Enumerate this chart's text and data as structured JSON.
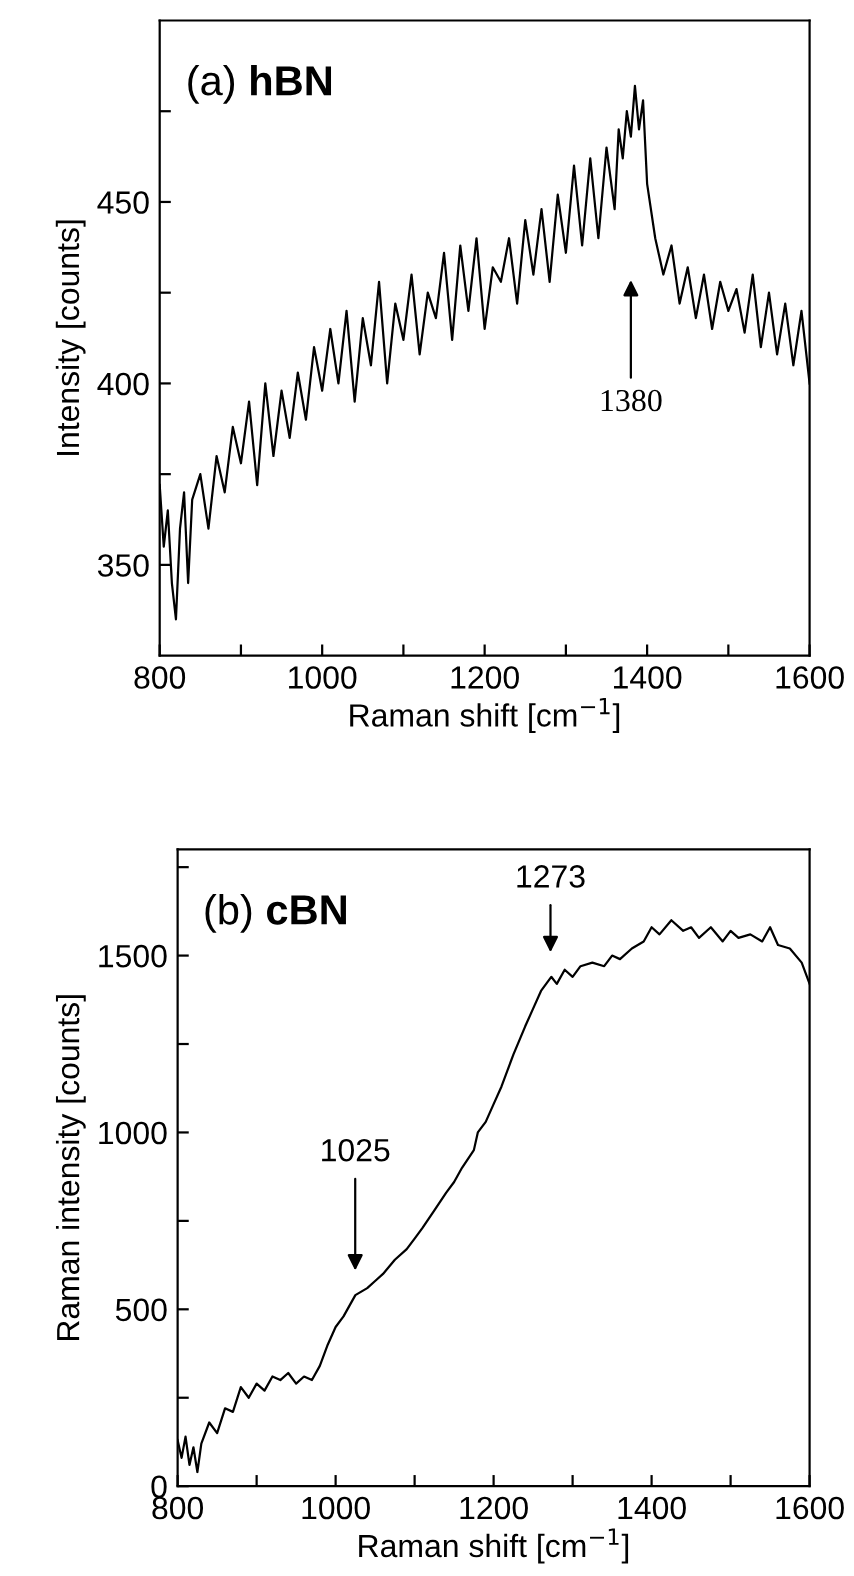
{
  "chart_data": [
    {
      "type": "line",
      "title": "(a) hBN",
      "xlabel": "Raman shift [cm$^{−1}$]",
      "ylabel": "Intensity [counts]",
      "x": [
        800,
        805,
        810,
        815,
        820,
        825,
        830,
        835,
        840,
        850,
        860,
        870,
        880,
        890,
        900,
        910,
        920,
        930,
        940,
        950,
        960,
        970,
        980,
        990,
        1000,
        1010,
        1020,
        1030,
        1040,
        1050,
        1060,
        1070,
        1080,
        1090,
        1100,
        1110,
        1120,
        1130,
        1140,
        1150,
        1160,
        1170,
        1180,
        1190,
        1200,
        1210,
        1220,
        1230,
        1240,
        1250,
        1260,
        1270,
        1280,
        1290,
        1300,
        1310,
        1320,
        1330,
        1340,
        1350,
        1360,
        1365,
        1370,
        1375,
        1380,
        1385,
        1390,
        1395,
        1400,
        1410,
        1420,
        1430,
        1440,
        1450,
        1460,
        1470,
        1480,
        1490,
        1500,
        1510,
        1520,
        1530,
        1540,
        1550,
        1560,
        1570,
        1580,
        1590,
        1600
      ],
      "series": [
        {
          "color": "#000000",
          "values": [
            372,
            355,
            365,
            345,
            335,
            360,
            370,
            345,
            368,
            375,
            360,
            380,
            370,
            388,
            378,
            395,
            372,
            400,
            380,
            398,
            385,
            403,
            390,
            410,
            398,
            415,
            400,
            420,
            395,
            418,
            405,
            428,
            400,
            422,
            412,
            430,
            408,
            425,
            418,
            436,
            412,
            438,
            420,
            440,
            415,
            432,
            428,
            440,
            422,
            445,
            430,
            448,
            428,
            452,
            436,
            460,
            438,
            462,
            440,
            465,
            448,
            470,
            462,
            475,
            468,
            482,
            470,
            478,
            455,
            440,
            430,
            438,
            422,
            432,
            418,
            430,
            415,
            428,
            420,
            426,
            414,
            430,
            410,
            425,
            408,
            422,
            405,
            420,
            400
          ]
        }
      ],
      "xlim": [
        800,
        1600
      ],
      "ylim": [
        325,
        500
      ],
      "xticks": [
        800,
        {
          "value": 900,
          "label": null
        },
        1000,
        {
          "value": 1100,
          "label": null
        },
        1200,
        {
          "value": 1300,
          "label": null
        },
        1400,
        {
          "value": 1500,
          "label": null
        },
        1600
      ],
      "yticks": [
        350,
        {
          "value": 375,
          "label": null
        },
        400,
        {
          "value": 425,
          "label": null
        },
        450,
        {
          "value": 475,
          "label": null
        }
      ],
      "annotations": [
        "1380"
      ],
      "grid": false,
      "legend": false
    },
    {
      "type": "line",
      "title": "(b) cBN",
      "xlabel": "Raman shift [cm$^{−1}$]",
      "ylabel": "Raman intensity [counts]",
      "x": [
        800,
        805,
        810,
        815,
        820,
        825,
        830,
        840,
        850,
        860,
        870,
        880,
        890,
        900,
        910,
        920,
        930,
        940,
        950,
        960,
        970,
        980,
        990,
        1000,
        1010,
        1025,
        1040,
        1050,
        1060,
        1075,
        1090,
        1100,
        1110,
        1125,
        1140,
        1150,
        1160,
        1175,
        1180,
        1190,
        1200,
        1210,
        1225,
        1240,
        1250,
        1260,
        1273,
        1280,
        1290,
        1300,
        1310,
        1325,
        1340,
        1350,
        1360,
        1375,
        1390,
        1400,
        1410,
        1425,
        1440,
        1450,
        1460,
        1475,
        1490,
        1500,
        1510,
        1525,
        1540,
        1550,
        1560,
        1575,
        1590,
        1600
      ],
      "series": [
        {
          "color": "#000000",
          "values": [
            130,
            80,
            140,
            60,
            110,
            40,
            120,
            180,
            150,
            220,
            210,
            280,
            250,
            290,
            270,
            310,
            300,
            320,
            290,
            310,
            300,
            340,
            400,
            450,
            480,
            540,
            560,
            580,
            600,
            640,
            670,
            700,
            730,
            780,
            830,
            860,
            900,
            950,
            1000,
            1030,
            1080,
            1130,
            1220,
            1300,
            1350,
            1400,
            1440,
            1420,
            1460,
            1440,
            1470,
            1480,
            1470,
            1500,
            1490,
            1520,
            1540,
            1580,
            1560,
            1600,
            1570,
            1580,
            1550,
            1580,
            1540,
            1570,
            1550,
            1560,
            1540,
            1580,
            1530,
            1520,
            1480,
            1420
          ]
        }
      ],
      "xlim": [
        800,
        1600
      ],
      "ylim": [
        0,
        1800
      ],
      "xticks": [
        800,
        {
          "value": 900,
          "label": null
        },
        1000,
        {
          "value": 1100,
          "label": null
        },
        1200,
        {
          "value": 1300,
          "label": null
        },
        1400,
        {
          "value": 1500,
          "label": null
        },
        1600
      ],
      "yticks": [
        0,
        {
          "value": 250,
          "label": null
        },
        500,
        {
          "value": 750,
          "label": null
        },
        1000,
        {
          "value": 1250,
          "label": null
        },
        1500,
        {
          "value": 1750,
          "label": null
        }
      ],
      "annotations": [
        "1025",
        "1273"
      ],
      "grid": false,
      "legend": false
    }
  ]
}
